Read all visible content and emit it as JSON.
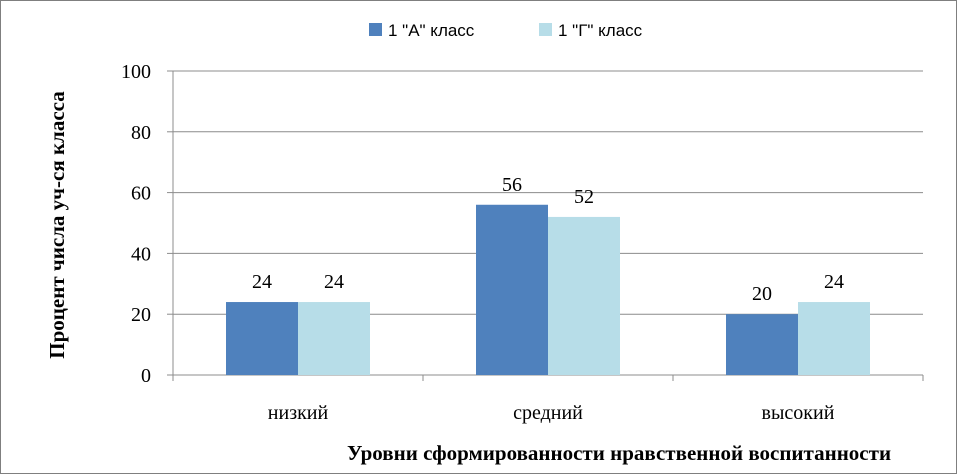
{
  "chart_data": {
    "type": "bar",
    "categories": [
      "низкий",
      "средний",
      "высокий"
    ],
    "series": [
      {
        "name": "1 \"А\" класс",
        "values": [
          24,
          56,
          20
        ],
        "color": "#4f81bd"
      },
      {
        "name": "1 \"Г\" класс",
        "values": [
          24,
          52,
          24
        ],
        "color": "#b7dde8"
      }
    ],
    "ylim": [
      0,
      100
    ],
    "yticks": [
      0,
      20,
      40,
      60,
      80,
      100
    ],
    "ylabel": "Процент числа уч-ся класса",
    "xlabel": "Уровни сформированности нравственной воспитанности",
    "title": "",
    "legend_position": "top",
    "grid": true,
    "data_labels": true
  }
}
